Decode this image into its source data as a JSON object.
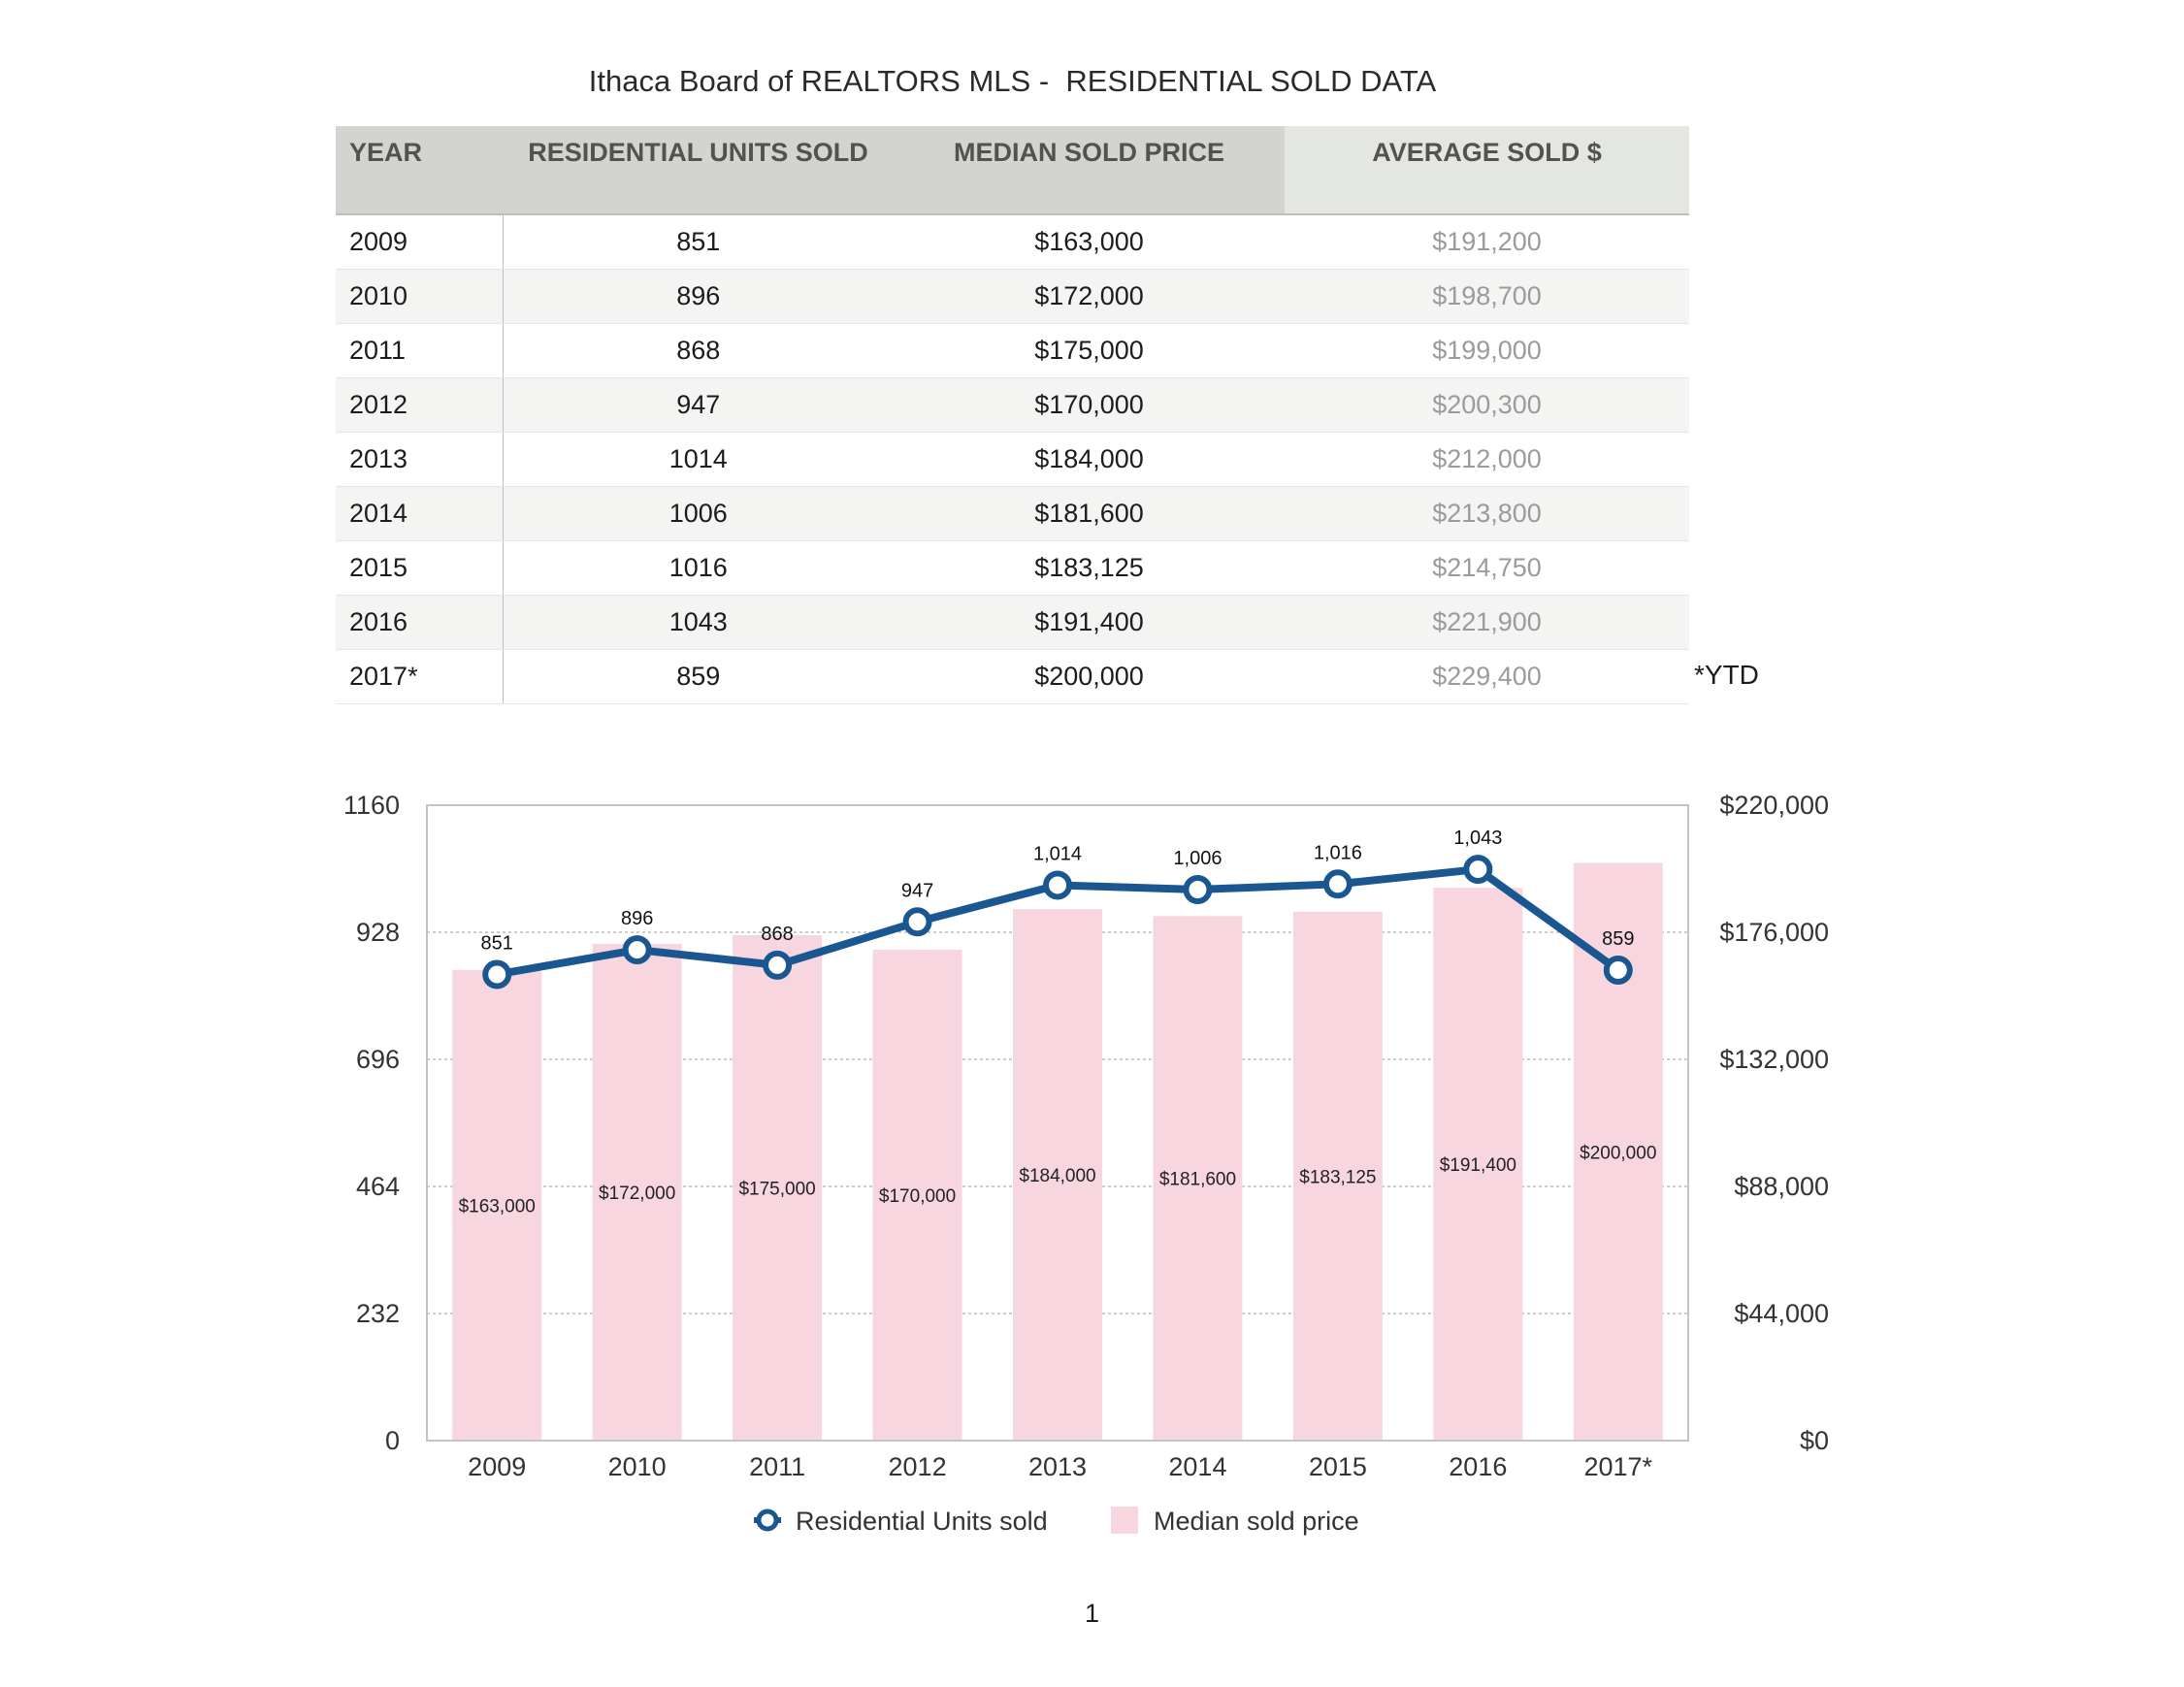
{
  "title": "Ithaca Board of REALTORS MLS -  RESIDENTIAL SOLD DATA",
  "table": {
    "headers": [
      "YEAR",
      "RESIDENTIAL UNITS SOLD",
      "MEDIAN SOLD PRICE",
      "AVERAGE SOLD $"
    ],
    "rows": [
      [
        "2009",
        "851",
        "$163,000",
        "$191,200"
      ],
      [
        "2010",
        "896",
        "$172,000",
        "$198,700"
      ],
      [
        "2011",
        "868",
        "$175,000",
        "$199,000"
      ],
      [
        "2012",
        "947",
        "$170,000",
        "$200,300"
      ],
      [
        "2013",
        "1014",
        "$184,000",
        "$212,000"
      ],
      [
        "2014",
        "1006",
        "$181,600",
        "$213,800"
      ],
      [
        "2015",
        "1016",
        "$183,125",
        "$214,750"
      ],
      [
        "2016",
        "1043",
        "$191,400",
        "$221,900"
      ],
      [
        "2017*",
        "859",
        "$200,000",
        "$229,400"
      ]
    ],
    "footnote": "*YTD"
  },
  "chart_data": {
    "type": "bar",
    "categories": [
      "2009",
      "2010",
      "2011",
      "2012",
      "2013",
      "2014",
      "2015",
      "2016",
      "2017*"
    ],
    "series": [
      {
        "name": "Residential Units sold",
        "type": "line",
        "axis": "left",
        "color": "#1a5791",
        "values": [
          851,
          896,
          868,
          947,
          1014,
          1006,
          1016,
          1043,
          859
        ],
        "labels": [
          "851",
          "896",
          "868",
          "947",
          "1,014",
          "1,006",
          "1,016",
          "1,043",
          "859"
        ]
      },
      {
        "name": "Median sold price",
        "type": "bar",
        "axis": "right",
        "color": "#f7d6e0",
        "values": [
          163000,
          172000,
          175000,
          170000,
          184000,
          181600,
          183125,
          191400,
          200000
        ],
        "labels": [
          "$163,000",
          "$172,000",
          "$175,000",
          "$170,000",
          "$184,000",
          "$181,600",
          "$183,125",
          "$191,400",
          "$200,000"
        ]
      }
    ],
    "y_left": {
      "ylim": [
        0,
        1160
      ],
      "ticks": [
        "0",
        "232",
        "464",
        "696",
        "928",
        "1160"
      ]
    },
    "y_right": {
      "ylim": [
        0,
        220000
      ],
      "ticks": [
        "$0",
        "$44,000",
        "$88,000",
        "$132,000",
        "$176,000",
        "$220,000"
      ]
    },
    "grid": true,
    "legend": "bottom-center"
  },
  "page_number": "1"
}
